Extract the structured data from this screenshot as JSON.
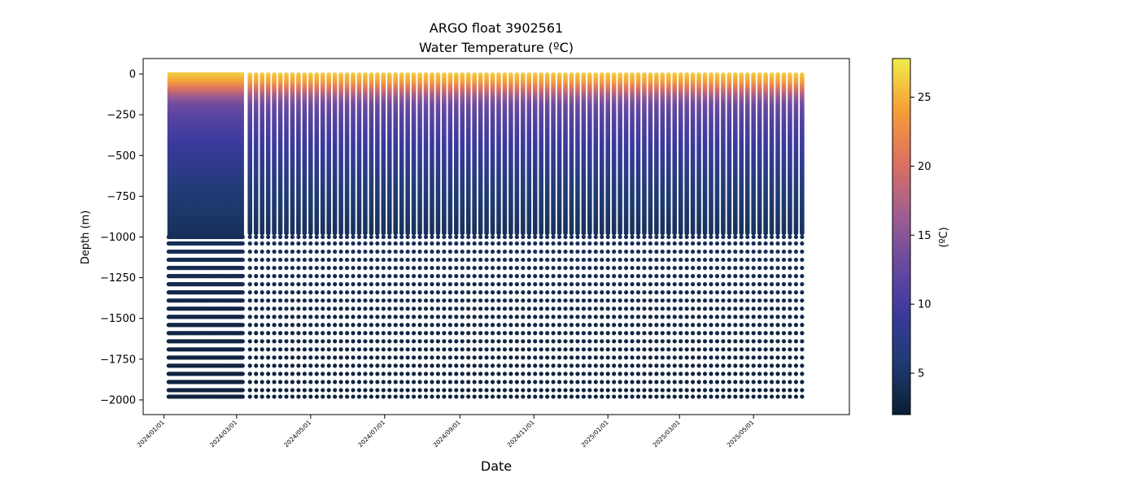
{
  "chart_data": {
    "type": "scatter",
    "title": "ARGO float 3902561",
    "subtitle": "Water Temperature (ºC)",
    "xlabel": "Date",
    "ylabel": "Depth (m)",
    "colorbar_label": "(ºC)",
    "x_ticks": [
      "2024/01/01",
      "2024/03/01",
      "2024/05/01",
      "2024/07/01",
      "2024/09/01",
      "2024/11/01",
      "2025/01/01",
      "2025/03/01",
      "2025/05/01"
    ],
    "y_ticks": [
      0,
      -250,
      -500,
      -750,
      -1000,
      -1250,
      -1500,
      -1750,
      -2000
    ],
    "colorbar_ticks": [
      5,
      10,
      15,
      20,
      25
    ],
    "xlim": [
      "2023-12-15",
      "2025-07-19"
    ],
    "ylim": [
      -2090,
      95
    ],
    "color_range": [
      2,
      27.8
    ],
    "colormap": [
      "#0b1d33",
      "#1f3b73",
      "#3b3a9e",
      "#6a4aa0",
      "#a45f8f",
      "#e0715e",
      "#f79e36",
      "#f0ec4a"
    ],
    "profiles": {
      "dense_period": [
        "2024-01-05",
        "2024-03-06"
      ],
      "dense_interval_days": 1,
      "sparse_period": [
        "2024-03-12",
        "2025-06-14"
      ],
      "sparse_interval_days": 5,
      "surface_depth_m": 0,
      "dense_sampling_bottom_m": -980,
      "deep_levels_m": [
        -1000,
        -1040,
        -1090,
        -1140,
        -1190,
        -1240,
        -1290,
        -1340,
        -1390,
        -1440,
        -1490,
        -1540,
        -1590,
        -1640,
        -1690,
        -1740,
        -1790,
        -1840,
        -1890,
        -1940,
        -1980
      ]
    },
    "temperature_profile": {
      "depth_m": [
        0,
        -60,
        -120,
        -180,
        -300,
        -500,
        -700,
        -1000,
        -1500,
        -2000
      ],
      "temp_c": [
        26.5,
        24,
        18,
        13.5,
        11,
        8.5,
        6,
        4.2,
        3.2,
        2.7
      ]
    },
    "grid": false,
    "legend": "colorbar-right"
  }
}
